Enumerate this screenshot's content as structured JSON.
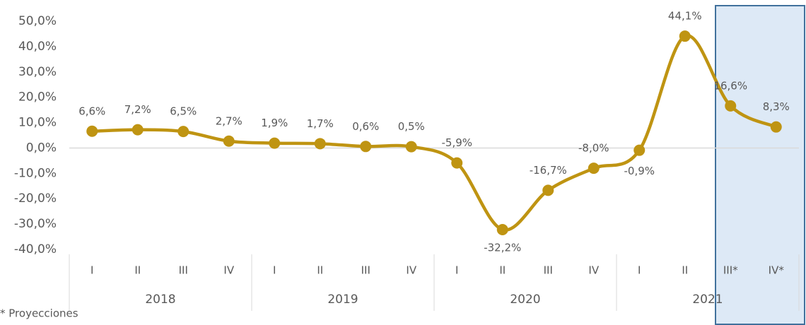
{
  "chart_data": {
    "type": "line",
    "categories": [
      "I",
      "II",
      "III",
      "IV",
      "I",
      "II",
      "III",
      "IV",
      "I",
      "II",
      "III",
      "IV",
      "I",
      "II",
      "III*",
      "IV*"
    ],
    "groups": [
      {
        "label": "2018",
        "count": 4
      },
      {
        "label": "2019",
        "count": 4
      },
      {
        "label": "2020",
        "count": 4
      },
      {
        "label": "2021",
        "count": 4
      }
    ],
    "series": [
      {
        "color": "#bf9412",
        "values": [
          6.6,
          7.2,
          6.5,
          2.7,
          1.9,
          1.7,
          0.6,
          0.5,
          -5.9,
          -32.2,
          -16.7,
          -8.0,
          -0.9,
          44.1,
          16.6,
          8.3
        ],
        "value_labels": [
          "6,6%",
          "7,2%",
          "6,5%",
          "2,7%",
          "1,9%",
          "1,7%",
          "0,6%",
          "0,5%",
          "-5,9%",
          "-32,2%",
          "-16,7%",
          "-8,0%",
          "-0,9%",
          "44,1%",
          "16,6%",
          "8,3%"
        ]
      }
    ],
    "ylim": [
      -40,
      50
    ],
    "yticks": [
      {
        "value": -40,
        "label": "-40,0%"
      },
      {
        "value": -30,
        "label": "-30,0%"
      },
      {
        "value": -20,
        "label": "-20,0%"
      },
      {
        "value": -10,
        "label": "-10,0%"
      },
      {
        "value": 0,
        "label": "0,0%"
      },
      {
        "value": 10,
        "label": "10,0%"
      },
      {
        "value": 20,
        "label": "20,0%"
      },
      {
        "value": 30,
        "label": "30,0%"
      },
      {
        "value": 40,
        "label": "40,0%"
      },
      {
        "value": 50,
        "label": "50,0%"
      }
    ],
    "footnote": "* Proyecciones"
  }
}
